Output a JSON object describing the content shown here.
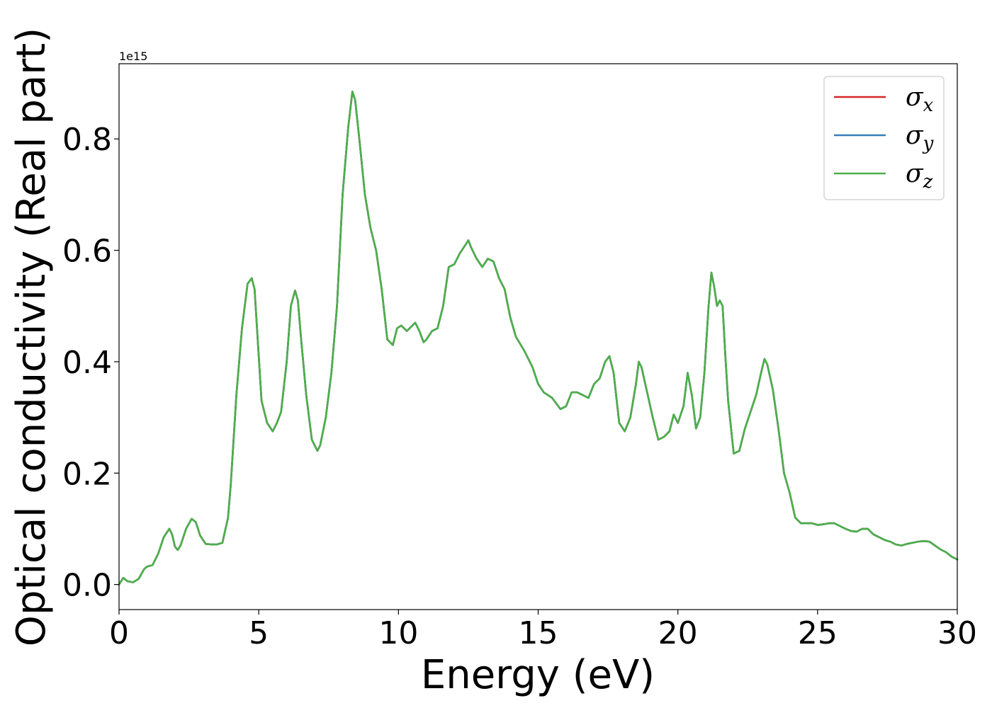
{
  "chart_data": {
    "type": "line",
    "title": "",
    "xlabel": "Energy (eV)",
    "ylabel": "Optical conductivity (Real part)",
    "y_offset_text": "1e15",
    "xlim": [
      0,
      30
    ],
    "ylim": [
      -0.045,
      0.935
    ],
    "x_ticks": [
      0,
      5,
      10,
      15,
      20,
      25,
      30
    ],
    "x_tick_labels": [
      "0",
      "5",
      "10",
      "15",
      "20",
      "25",
      "30"
    ],
    "y_ticks": [
      0.0,
      0.2,
      0.4,
      0.6,
      0.8
    ],
    "y_tick_labels": [
      "0.0",
      "0.2",
      "0.4",
      "0.6",
      "0.8"
    ],
    "grid": false,
    "legend_position": "top-right",
    "x": [
      0.0,
      0.15,
      0.3,
      0.5,
      0.7,
      0.9,
      1.0,
      1.2,
      1.4,
      1.6,
      1.8,
      1.9,
      2.0,
      2.1,
      2.2,
      2.4,
      2.6,
      2.75,
      2.9,
      3.1,
      3.3,
      3.5,
      3.7,
      3.9,
      4.0,
      4.2,
      4.4,
      4.6,
      4.75,
      4.85,
      4.95,
      5.1,
      5.3,
      5.5,
      5.65,
      5.8,
      6.0,
      6.15,
      6.3,
      6.4,
      6.5,
      6.7,
      6.9,
      7.1,
      7.2,
      7.4,
      7.6,
      7.8,
      8.0,
      8.2,
      8.35,
      8.45,
      8.6,
      8.8,
      9.0,
      9.2,
      9.4,
      9.6,
      9.8,
      9.95,
      10.1,
      10.3,
      10.5,
      10.6,
      10.75,
      10.9,
      11.0,
      11.2,
      11.4,
      11.6,
      11.8,
      12.0,
      12.2,
      12.4,
      12.5,
      12.6,
      12.8,
      13.0,
      13.2,
      13.4,
      13.6,
      13.8,
      14.0,
      14.2,
      14.5,
      14.8,
      15.0,
      15.2,
      15.5,
      15.8,
      16.0,
      16.2,
      16.4,
      16.6,
      16.8,
      17.0,
      17.2,
      17.4,
      17.55,
      17.7,
      17.9,
      18.1,
      18.3,
      18.5,
      18.6,
      18.7,
      18.9,
      19.1,
      19.3,
      19.5,
      19.7,
      19.85,
      20.0,
      20.2,
      20.35,
      20.5,
      20.65,
      20.8,
      20.95,
      21.1,
      21.2,
      21.3,
      21.4,
      21.5,
      21.6,
      21.7,
      21.8,
      22.0,
      22.2,
      22.4,
      22.6,
      22.8,
      23.0,
      23.1,
      23.2,
      23.4,
      23.6,
      23.8,
      24.0,
      24.2,
      24.4,
      24.6,
      24.8,
      25.0,
      25.2,
      25.4,
      25.6,
      25.8,
      26.0,
      26.2,
      26.4,
      26.6,
      26.8,
      27.0,
      27.2,
      27.4,
      27.6,
      27.8,
      28.0,
      28.2,
      28.4,
      28.6,
      28.8,
      29.0,
      29.2,
      29.4,
      29.6,
      29.8,
      30.0
    ],
    "series": [
      {
        "name": "σx",
        "color": "#d62728",
        "values": [
          0.0,
          0.012,
          0.006,
          0.004,
          0.01,
          0.028,
          0.032,
          0.035,
          0.055,
          0.085,
          0.1,
          0.09,
          0.068,
          0.062,
          0.07,
          0.1,
          0.118,
          0.112,
          0.088,
          0.073,
          0.072,
          0.072,
          0.075,
          0.12,
          0.18,
          0.34,
          0.46,
          0.54,
          0.55,
          0.53,
          0.45,
          0.33,
          0.29,
          0.275,
          0.29,
          0.31,
          0.4,
          0.5,
          0.528,
          0.51,
          0.45,
          0.34,
          0.26,
          0.24,
          0.25,
          0.3,
          0.38,
          0.5,
          0.7,
          0.82,
          0.885,
          0.87,
          0.8,
          0.7,
          0.64,
          0.6,
          0.53,
          0.44,
          0.43,
          0.46,
          0.465,
          0.455,
          0.465,
          0.47,
          0.455,
          0.435,
          0.44,
          0.455,
          0.46,
          0.5,
          0.57,
          0.575,
          0.595,
          0.61,
          0.618,
          0.605,
          0.585,
          0.57,
          0.585,
          0.58,
          0.55,
          0.53,
          0.48,
          0.445,
          0.42,
          0.39,
          0.36,
          0.345,
          0.335,
          0.315,
          0.32,
          0.345,
          0.345,
          0.34,
          0.335,
          0.36,
          0.37,
          0.4,
          0.41,
          0.38,
          0.29,
          0.275,
          0.3,
          0.36,
          0.4,
          0.39,
          0.345,
          0.3,
          0.26,
          0.265,
          0.275,
          0.305,
          0.29,
          0.32,
          0.38,
          0.34,
          0.28,
          0.3,
          0.38,
          0.5,
          0.56,
          0.535,
          0.5,
          0.51,
          0.5,
          0.41,
          0.33,
          0.235,
          0.24,
          0.28,
          0.31,
          0.34,
          0.385,
          0.405,
          0.395,
          0.35,
          0.28,
          0.2,
          0.165,
          0.12,
          0.11,
          0.11,
          0.11,
          0.107,
          0.108,
          0.11,
          0.11,
          0.105,
          0.1,
          0.096,
          0.095,
          0.1,
          0.1,
          0.09,
          0.085,
          0.08,
          0.077,
          0.072,
          0.07,
          0.073,
          0.075,
          0.077,
          0.078,
          0.077,
          0.07,
          0.063,
          0.058,
          0.05,
          0.045
        ]
      },
      {
        "name": "σy",
        "color": "#377eb8",
        "values": [
          0.0,
          0.012,
          0.006,
          0.004,
          0.01,
          0.028,
          0.032,
          0.035,
          0.055,
          0.085,
          0.1,
          0.09,
          0.068,
          0.062,
          0.07,
          0.1,
          0.118,
          0.112,
          0.088,
          0.073,
          0.072,
          0.072,
          0.075,
          0.12,
          0.18,
          0.34,
          0.46,
          0.54,
          0.55,
          0.53,
          0.45,
          0.33,
          0.29,
          0.275,
          0.29,
          0.31,
          0.4,
          0.5,
          0.528,
          0.51,
          0.45,
          0.34,
          0.26,
          0.24,
          0.25,
          0.3,
          0.38,
          0.5,
          0.7,
          0.82,
          0.885,
          0.87,
          0.8,
          0.7,
          0.64,
          0.6,
          0.53,
          0.44,
          0.43,
          0.46,
          0.465,
          0.455,
          0.465,
          0.47,
          0.455,
          0.435,
          0.44,
          0.455,
          0.46,
          0.5,
          0.57,
          0.575,
          0.595,
          0.61,
          0.618,
          0.605,
          0.585,
          0.57,
          0.585,
          0.58,
          0.55,
          0.53,
          0.48,
          0.445,
          0.42,
          0.39,
          0.36,
          0.345,
          0.335,
          0.315,
          0.32,
          0.345,
          0.345,
          0.34,
          0.335,
          0.36,
          0.37,
          0.4,
          0.41,
          0.38,
          0.29,
          0.275,
          0.3,
          0.36,
          0.4,
          0.39,
          0.345,
          0.3,
          0.26,
          0.265,
          0.275,
          0.305,
          0.29,
          0.32,
          0.38,
          0.34,
          0.28,
          0.3,
          0.38,
          0.5,
          0.56,
          0.535,
          0.5,
          0.51,
          0.5,
          0.41,
          0.33,
          0.235,
          0.24,
          0.28,
          0.31,
          0.34,
          0.385,
          0.405,
          0.395,
          0.35,
          0.28,
          0.2,
          0.165,
          0.12,
          0.11,
          0.11,
          0.11,
          0.107,
          0.108,
          0.11,
          0.11,
          0.105,
          0.1,
          0.096,
          0.095,
          0.1,
          0.1,
          0.09,
          0.085,
          0.08,
          0.077,
          0.072,
          0.07,
          0.073,
          0.075,
          0.077,
          0.078,
          0.077,
          0.07,
          0.063,
          0.058,
          0.05,
          0.045
        ]
      },
      {
        "name": "σz",
        "color": "#4daf4a",
        "values": [
          0.0,
          0.012,
          0.006,
          0.004,
          0.01,
          0.028,
          0.032,
          0.035,
          0.055,
          0.085,
          0.1,
          0.09,
          0.068,
          0.062,
          0.07,
          0.1,
          0.118,
          0.112,
          0.088,
          0.073,
          0.072,
          0.072,
          0.075,
          0.12,
          0.18,
          0.34,
          0.46,
          0.54,
          0.55,
          0.53,
          0.45,
          0.33,
          0.29,
          0.275,
          0.29,
          0.31,
          0.4,
          0.5,
          0.528,
          0.51,
          0.45,
          0.34,
          0.26,
          0.24,
          0.25,
          0.3,
          0.38,
          0.5,
          0.7,
          0.82,
          0.885,
          0.87,
          0.8,
          0.7,
          0.64,
          0.6,
          0.53,
          0.44,
          0.43,
          0.46,
          0.465,
          0.455,
          0.465,
          0.47,
          0.455,
          0.435,
          0.44,
          0.455,
          0.46,
          0.5,
          0.57,
          0.575,
          0.595,
          0.61,
          0.618,
          0.605,
          0.585,
          0.57,
          0.585,
          0.58,
          0.55,
          0.53,
          0.48,
          0.445,
          0.42,
          0.39,
          0.36,
          0.345,
          0.335,
          0.315,
          0.32,
          0.345,
          0.345,
          0.34,
          0.335,
          0.36,
          0.37,
          0.4,
          0.41,
          0.38,
          0.29,
          0.275,
          0.3,
          0.36,
          0.4,
          0.39,
          0.345,
          0.3,
          0.26,
          0.265,
          0.275,
          0.305,
          0.29,
          0.32,
          0.38,
          0.34,
          0.28,
          0.3,
          0.38,
          0.5,
          0.56,
          0.535,
          0.5,
          0.51,
          0.5,
          0.41,
          0.33,
          0.235,
          0.24,
          0.28,
          0.31,
          0.34,
          0.385,
          0.405,
          0.395,
          0.35,
          0.28,
          0.2,
          0.165,
          0.12,
          0.11,
          0.11,
          0.11,
          0.107,
          0.108,
          0.11,
          0.11,
          0.105,
          0.1,
          0.096,
          0.095,
          0.1,
          0.1,
          0.09,
          0.085,
          0.08,
          0.077,
          0.072,
          0.07,
          0.073,
          0.075,
          0.077,
          0.078,
          0.077,
          0.07,
          0.063,
          0.058,
          0.05,
          0.045
        ]
      }
    ],
    "legend": [
      {
        "symbol": "σ",
        "subscript": "x",
        "color": "#d62728"
      },
      {
        "symbol": "σ",
        "subscript": "y",
        "color": "#377eb8"
      },
      {
        "symbol": "σ",
        "subscript": "z",
        "color": "#4daf4a"
      }
    ]
  }
}
